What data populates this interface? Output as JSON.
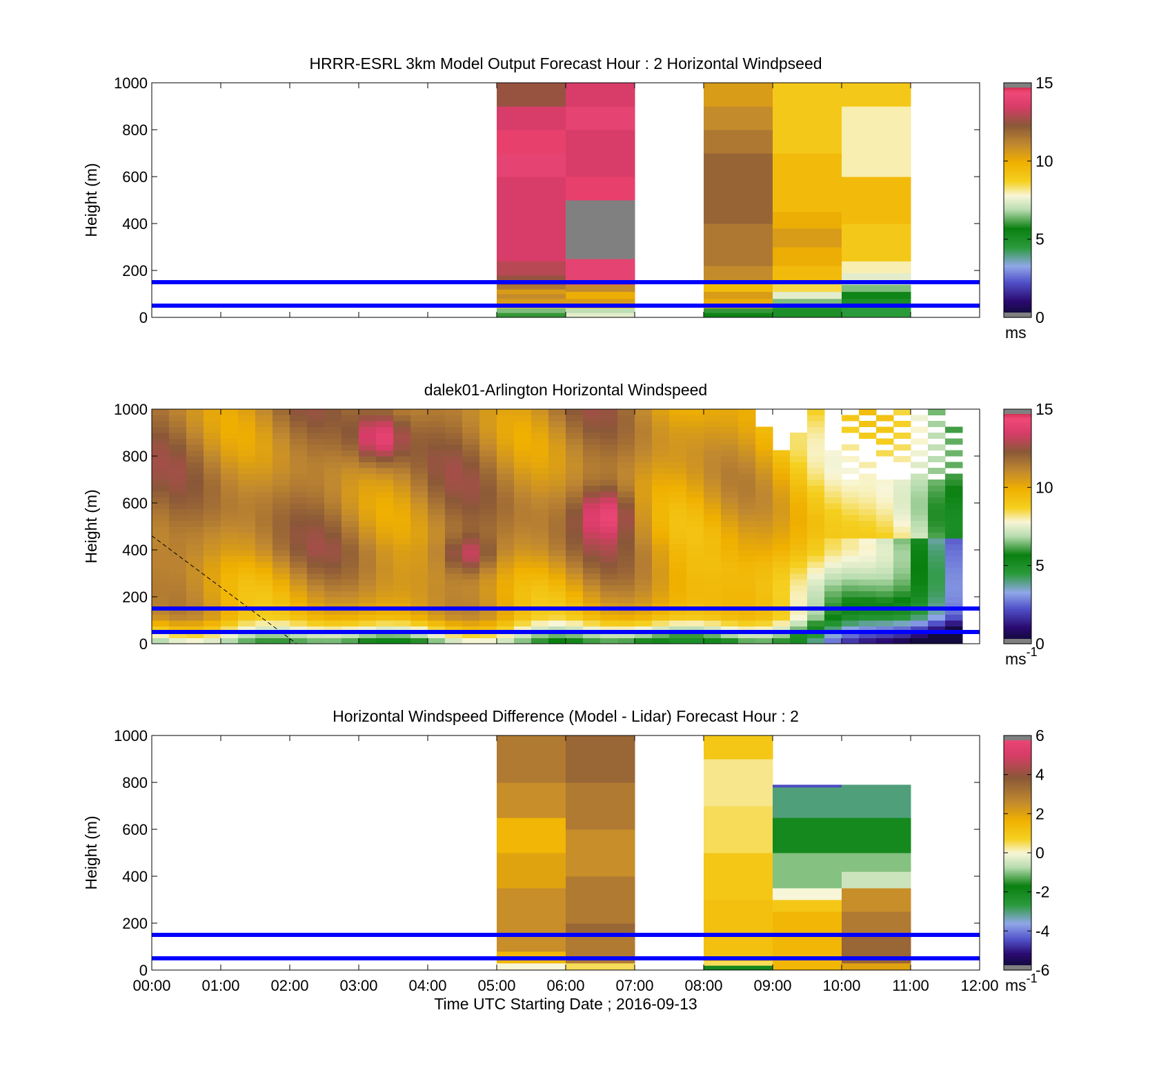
{
  "chart_data": [
    {
      "type": "heatmap",
      "title": "HRRR-ESRL 3km Model Output   Forecast Hour : 2 Horizontal Windpseed",
      "ylabel": "Height (m)",
      "xlabel": "",
      "ylim": [
        0,
        1000
      ],
      "xlim": [
        0,
        12
      ],
      "yticks": [
        "0",
        "200",
        "400",
        "600",
        "800",
        "1000"
      ],
      "xticks": [],
      "colorbar": {
        "range": [
          0,
          15
        ],
        "ticks": [
          "0",
          "5",
          "10",
          "15"
        ],
        "unit": "ms",
        "unit_sup": "",
        "colormap": "speed"
      },
      "reference_lines": {
        "heights_m": [
          50,
          150
        ],
        "color": "#0000ff"
      },
      "columns": [
        {
          "x0": 5,
          "x1": 6,
          "cells": [
            [
              0,
              20,
              6
            ],
            [
              20,
              40,
              6.5
            ],
            [
              40,
              60,
              9
            ],
            [
              60,
              80,
              10.5
            ],
            [
              80,
              100,
              11
            ],
            [
              100,
              120,
              10.5
            ],
            [
              120,
              140,
              11.5
            ],
            [
              140,
              180,
              12.5
            ],
            [
              180,
              240,
              13
            ],
            [
              240,
              300,
              13.5
            ],
            [
              300,
              400,
              13.5
            ],
            [
              400,
              500,
              13.5
            ],
            [
              500,
              600,
              13.5
            ],
            [
              600,
              700,
              14
            ],
            [
              700,
              800,
              14.5
            ],
            [
              800,
              900,
              13.5
            ],
            [
              900,
              1000,
              12.5
            ]
          ]
        },
        {
          "x0": 6,
          "x1": 7,
          "cells": [
            [
              0,
              20,
              7.5
            ],
            [
              20,
              40,
              7
            ],
            [
              40,
              60,
              9.5
            ],
            [
              60,
              80,
              10.5
            ],
            [
              80,
              110,
              10
            ],
            [
              110,
              140,
              11
            ],
            [
              140,
              180,
              14
            ],
            [
              180,
              250,
              14
            ],
            [
              250,
              500,
              -1
            ],
            [
              500,
              600,
              14.5
            ],
            [
              600,
              700,
              13.5
            ],
            [
              700,
              800,
              13.5
            ],
            [
              800,
              900,
              14
            ],
            [
              900,
              1000,
              13.5
            ]
          ]
        },
        {
          "x0": 8,
          "x1": 9,
          "cells": [
            [
              0,
              20,
              5.5
            ],
            [
              20,
              40,
              6
            ],
            [
              40,
              60,
              10
            ],
            [
              60,
              80,
              10
            ],
            [
              80,
              110,
              10.5
            ],
            [
              110,
              150,
              9.5
            ],
            [
              150,
              220,
              11
            ],
            [
              220,
              300,
              11.5
            ],
            [
              300,
              400,
              11.5
            ],
            [
              400,
              600,
              12
            ],
            [
              600,
              700,
              12
            ],
            [
              700,
              800,
              11.5
            ],
            [
              800,
              900,
              11
            ],
            [
              900,
              1000,
              10.5
            ]
          ]
        },
        {
          "x0": 9,
          "x1": 10,
          "cells": [
            [
              0,
              20,
              5
            ],
            [
              20,
              40,
              5
            ],
            [
              40,
              60,
              6
            ],
            [
              60,
              80,
              6.5
            ],
            [
              80,
              110,
              7.5
            ],
            [
              110,
              150,
              8.5
            ],
            [
              150,
              220,
              9.5
            ],
            [
              220,
              300,
              10
            ],
            [
              300,
              380,
              10.5
            ],
            [
              380,
              450,
              10
            ],
            [
              450,
              600,
              9.5
            ],
            [
              600,
              700,
              9.5
            ],
            [
              700,
              800,
              9
            ],
            [
              800,
              900,
              9
            ],
            [
              900,
              1000,
              9
            ]
          ]
        },
        {
          "x0": 10,
          "x1": 11,
          "cells": [
            [
              0,
              20,
              4.5
            ],
            [
              20,
              40,
              4.5
            ],
            [
              40,
              60,
              4.5
            ],
            [
              60,
              80,
              5
            ],
            [
              80,
              110,
              5.5
            ],
            [
              110,
              140,
              6.5
            ],
            [
              140,
              190,
              7.5
            ],
            [
              190,
              240,
              8
            ],
            [
              240,
              300,
              9
            ],
            [
              300,
              400,
              9
            ],
            [
              400,
              500,
              9.5
            ],
            [
              500,
              600,
              9.5
            ],
            [
              600,
              800,
              8
            ],
            [
              800,
              900,
              8
            ],
            [
              900,
              1000,
              9
            ]
          ]
        }
      ]
    },
    {
      "type": "heatmap",
      "title": "dalek01-Arlington  Horizontal Windspeed",
      "ylabel": "Height (m)",
      "xlabel": "",
      "ylim": [
        0,
        1000
      ],
      "xlim": [
        0,
        12
      ],
      "yticks": [
        "0",
        "200",
        "400",
        "600",
        "800",
        "1000"
      ],
      "xticks": [],
      "colorbar": {
        "range": [
          0,
          15
        ],
        "ticks": [
          "0",
          "5",
          "10",
          "15"
        ],
        "unit": "ms",
        "unit_sup": "-1",
        "colormap": "speed"
      },
      "reference_lines": {
        "heights_m": [
          50,
          150
        ],
        "color": "#0000ff"
      },
      "dashed_line": [
        [
          0,
          460
        ],
        [
          2.1,
          0
        ]
      ],
      "lidar_field": {
        "resolution_hours": 0.25,
        "resolution_m": 25
      }
    },
    {
      "type": "heatmap",
      "title": "Horizontal Windspeed Difference (Model - Lidar) Forecast Hour : 2",
      "ylabel": "Height (m)",
      "xlabel": "Time UTC  Starting Date ; 2016-09-13",
      "ylim": [
        0,
        1000
      ],
      "xlim": [
        0,
        12
      ],
      "yticks": [
        "0",
        "200",
        "400",
        "600",
        "800",
        "1000"
      ],
      "xticks": [
        "00:00",
        "01:00",
        "02:00",
        "03:00",
        "04:00",
        "05:00",
        "06:00",
        "07:00",
        "08:00",
        "09:00",
        "10:00",
        "11:00",
        "12:00"
      ],
      "colorbar": {
        "range": [
          -6,
          6
        ],
        "ticks": [
          "-6",
          "-4",
          "-2",
          "0",
          "2",
          "4",
          "6"
        ],
        "unit": "ms",
        "unit_sup": "-1",
        "colormap": "diff"
      },
      "reference_lines": {
        "heights_m": [
          50,
          150
        ],
        "color": "#0000ff"
      },
      "columns": [
        {
          "x0": 5,
          "x1": 6,
          "cells": [
            [
              0,
              30,
              0
            ],
            [
              30,
              80,
              1.5
            ],
            [
              80,
              200,
              2.5
            ],
            [
              200,
              350,
              2.5
            ],
            [
              350,
              500,
              2
            ],
            [
              500,
              650,
              1.5
            ],
            [
              650,
              800,
              2.5
            ],
            [
              800,
              1000,
              3
            ]
          ]
        },
        {
          "x0": 6,
          "x1": 7,
          "cells": [
            [
              0,
              30,
              0.5
            ],
            [
              30,
              150,
              3
            ],
            [
              150,
              200,
              3.5
            ],
            [
              200,
              400,
              3
            ],
            [
              400,
              600,
              2.5
            ],
            [
              600,
              800,
              3
            ],
            [
              800,
              1000,
              3.5
            ]
          ]
        },
        {
          "x0": 8,
          "x1": 9,
          "cells": [
            [
              0,
              20,
              -2
            ],
            [
              20,
              40,
              0.5
            ],
            [
              40,
              300,
              1.2
            ],
            [
              300,
              500,
              1
            ],
            [
              500,
              700,
              0.5
            ],
            [
              700,
              900,
              0.3
            ],
            [
              900,
              1000,
              1
            ]
          ]
        },
        {
          "x0": 9,
          "x1": 10,
          "cells": [
            [
              0,
              30,
              1.5
            ],
            [
              30,
              150,
              1.5
            ],
            [
              150,
              250,
              1.5
            ],
            [
              250,
              300,
              1
            ],
            [
              300,
              350,
              0
            ],
            [
              350,
              500,
              -1
            ],
            [
              500,
              650,
              -2
            ],
            [
              650,
              780,
              -3
            ],
            [
              780,
              790,
              -4.5
            ]
          ]
        },
        {
          "x0": 10,
          "x1": 11,
          "cells": [
            [
              0,
              30,
              2
            ],
            [
              30,
              150,
              3.5
            ],
            [
              150,
              250,
              3
            ],
            [
              250,
              350,
              2.5
            ],
            [
              350,
              420,
              -0.5
            ],
            [
              420,
              500,
              -1
            ],
            [
              500,
              650,
              -2
            ],
            [
              650,
              790,
              -3
            ]
          ]
        }
      ]
    }
  ]
}
